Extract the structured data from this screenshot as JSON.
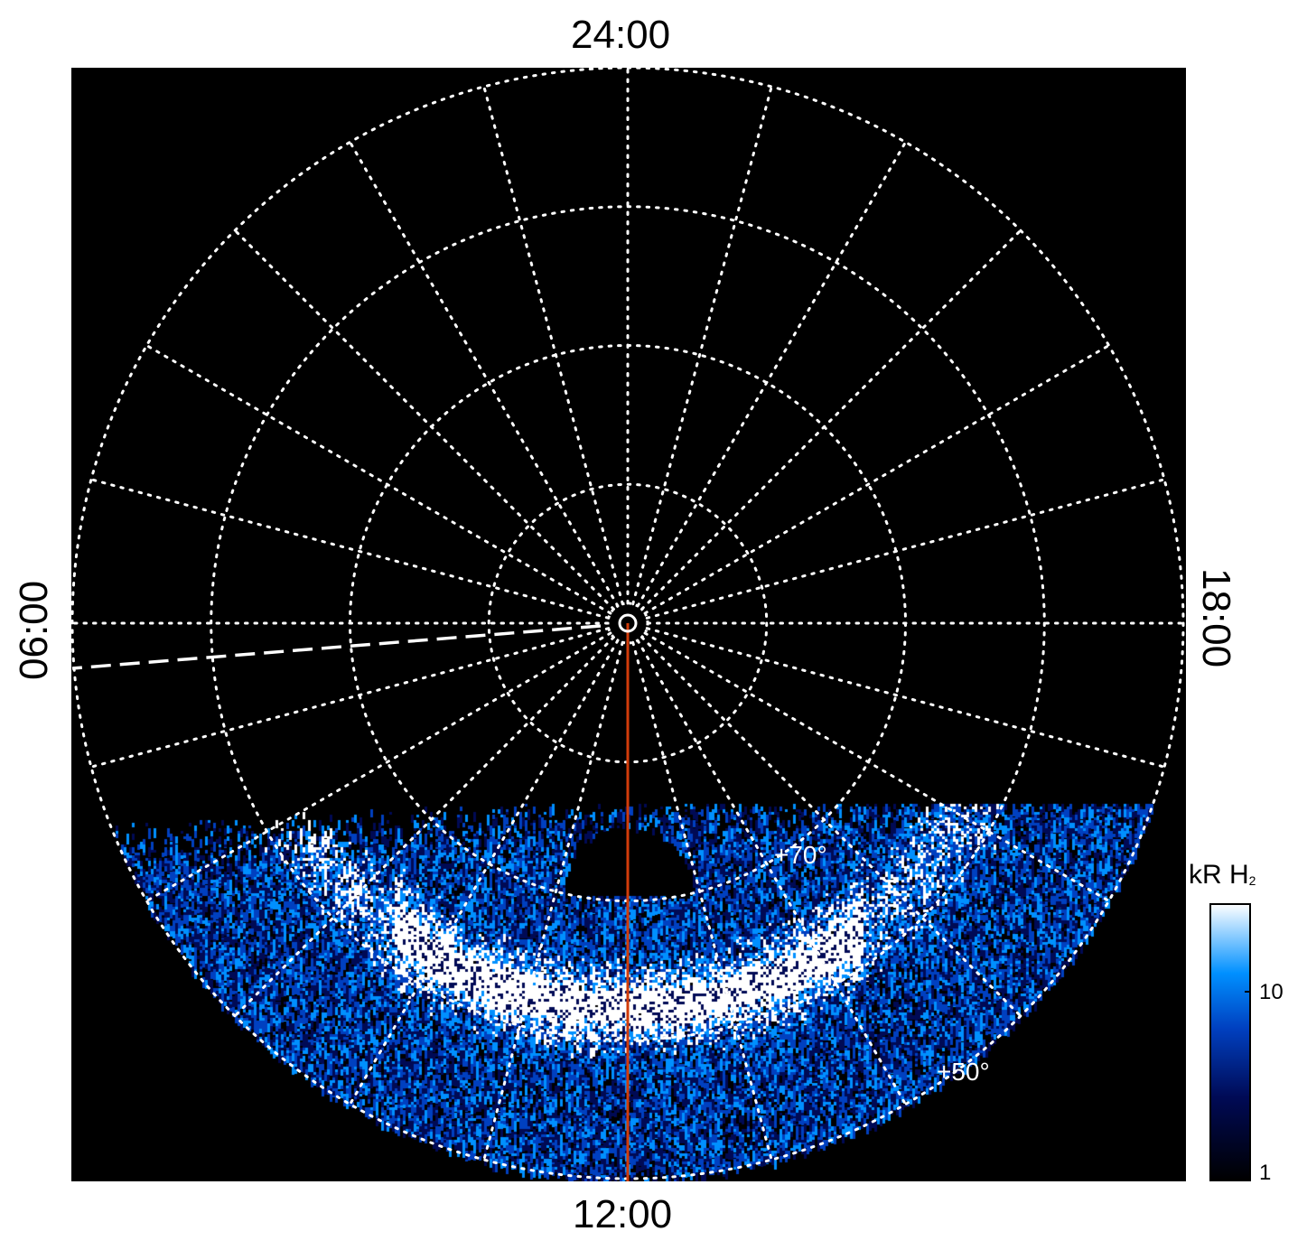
{
  "chart_data": {
    "type": "heatmap",
    "projection": "polar (north pole view)",
    "local_time_labels": {
      "top": "24:00",
      "left": "06:00",
      "right": "18:00",
      "bottom": "12:00"
    },
    "latitude_circles_deg": [
      80,
      70,
      60,
      50
    ],
    "latitude_labels": [
      "+70°",
      "+50°"
    ],
    "meridian_spacing_hours": 1,
    "grid": true,
    "colorbar": {
      "title": "kR H",
      "title_subscript": "2",
      "scale": "log",
      "range": [
        1,
        30
      ],
      "tick_labels": [
        "10",
        "1"
      ],
      "colormap": [
        "#000000",
        "#000a55",
        "#0040c0",
        "#0090ff",
        "#ffffff"
      ]
    },
    "overlays": {
      "red_line": {
        "color": "#d23c0a",
        "local_time": "12:00"
      },
      "dashed_line": {
        "color": "#ffffff",
        "local_time_approx": "06:20"
      }
    }
  }
}
